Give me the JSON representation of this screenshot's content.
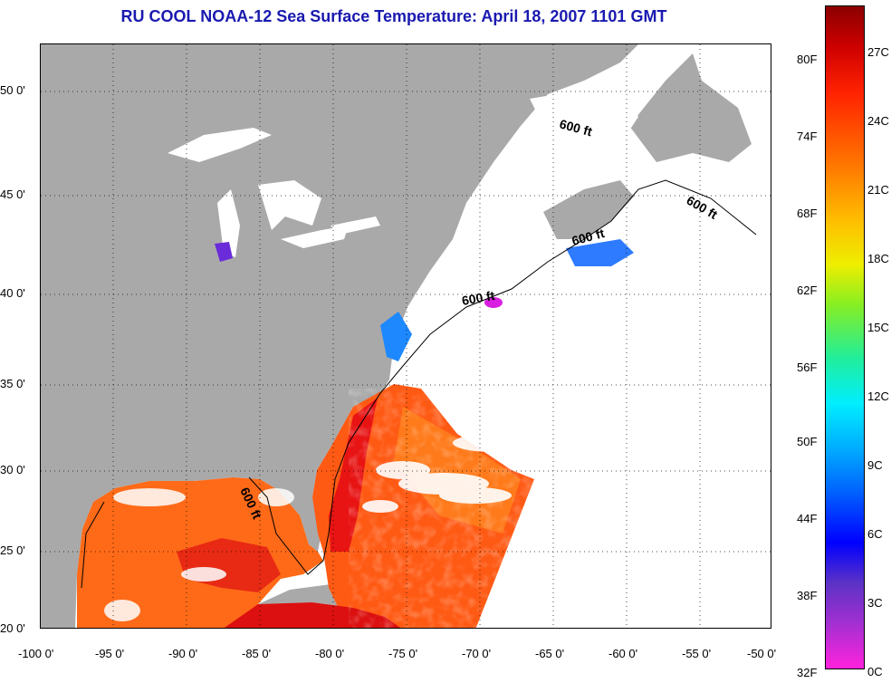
{
  "title": "RU COOL  NOAA-12  Sea Surface Temperature:  April 18, 2007 1101 GMT",
  "x_axis_ticks": [
    "-100 0'",
    "-95 0'",
    "-90 0'",
    "-85 0'",
    "-80 0'",
    "-75 0'",
    "-70 0'",
    "-65 0'",
    "-60 0'",
    "-55 0'",
    "-50 0'"
  ],
  "y_axis_ticks": [
    "50 0'",
    "45 0'",
    "40 0'",
    "35 0'",
    "30 0'",
    "25 0'",
    "20 0'"
  ],
  "contour_labels": [
    "600 ft",
    "600 ft",
    "600 ft",
    "600 ft",
    "600 ft"
  ],
  "colorbar": {
    "fahrenheit": [
      "80F",
      "74F",
      "68F",
      "62F",
      "56F",
      "50F",
      "44F",
      "38F",
      "32F"
    ],
    "celsius": [
      "27C",
      "24C",
      "21C",
      "18C",
      "15C",
      "12C",
      "9C",
      "6C",
      "3C",
      "0C"
    ]
  },
  "colors": {
    "land": "#a9a9a9",
    "cloud": "#ffffff",
    "title": "#1a1ab0",
    "warm": "#ff4a10",
    "hot": "#e01010",
    "cool": "#1e88ff"
  },
  "extent": {
    "lon": [
      -100,
      -50
    ],
    "lat": [
      20,
      52.5
    ]
  }
}
